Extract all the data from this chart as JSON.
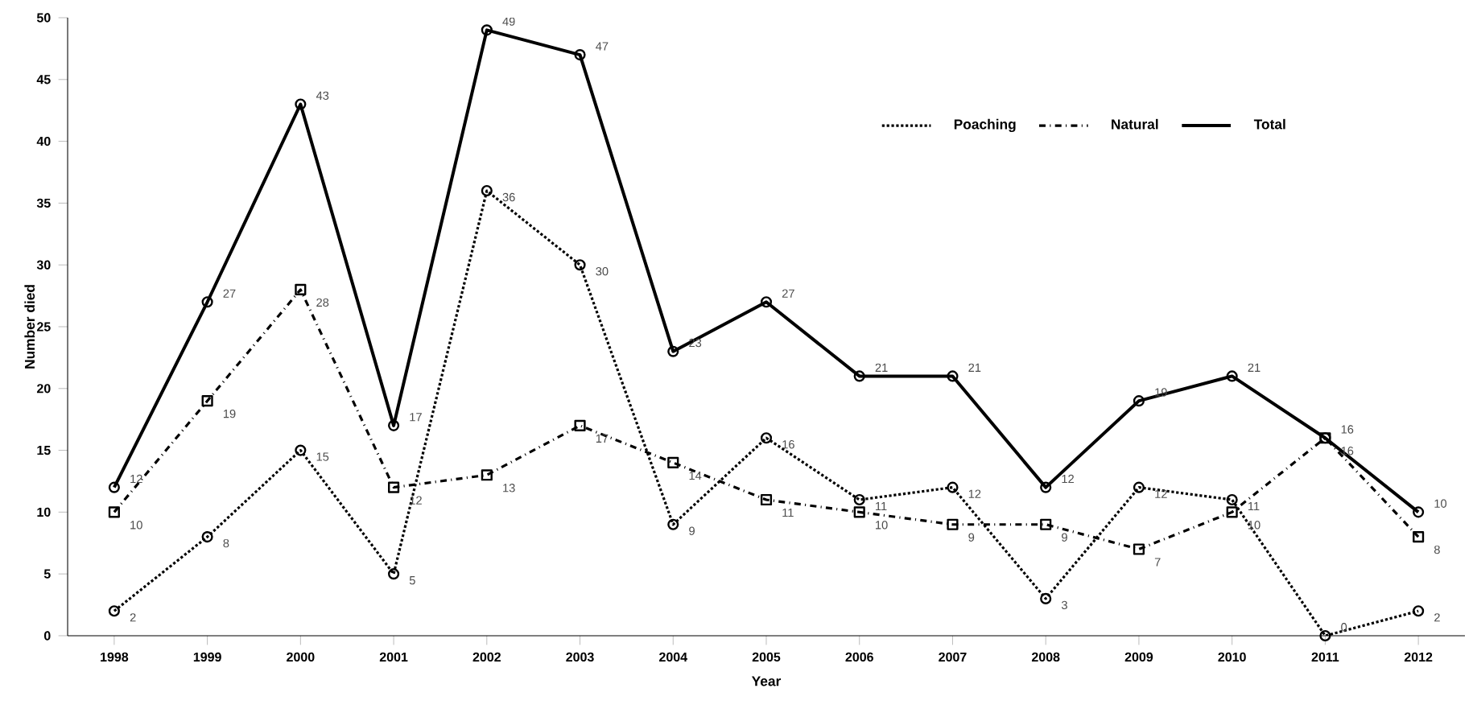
{
  "chart_data": {
    "type": "line",
    "xlabel": "Year",
    "ylabel": "Number died",
    "categories": [
      "1998",
      "1999",
      "2000",
      "2001",
      "2002",
      "2003",
      "2004",
      "2005",
      "2006",
      "2007",
      "2008",
      "2009",
      "2010",
      "2011",
      "2012"
    ],
    "series": [
      {
        "name": "Poaching",
        "color": "#000000",
        "marker": "circle",
        "line_style": "dotted",
        "values": [
          2,
          8,
          15,
          5,
          36,
          30,
          9,
          16,
          11,
          12,
          3,
          12,
          11,
          0,
          2
        ]
      },
      {
        "name": "Natural",
        "color": "#000000",
        "marker": "square",
        "line_style": "dashed",
        "values": [
          10,
          19,
          28,
          12,
          13,
          17,
          14,
          11,
          10,
          9,
          9,
          7,
          10,
          16,
          8
        ]
      },
      {
        "name": "Total",
        "color": "#000000",
        "marker": "circle",
        "line_style": "solid",
        "values": [
          12,
          27,
          43,
          17,
          49,
          47,
          23,
          27,
          21,
          21,
          12,
          19,
          21,
          16,
          10
        ]
      }
    ],
    "ylim": [
      0,
      50
    ],
    "yticks": [
      0,
      5,
      10,
      15,
      20,
      25,
      30,
      35,
      40,
      45,
      50
    ],
    "grid": false,
    "legend": "top right",
    "data_labels": true
  }
}
